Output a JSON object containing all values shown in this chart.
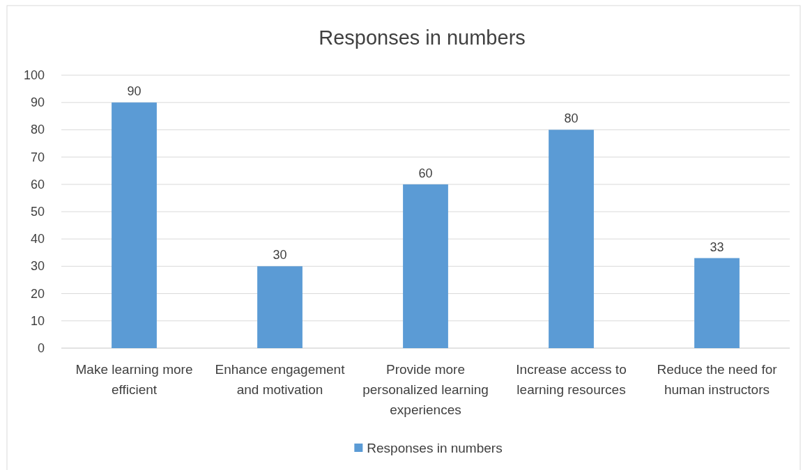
{
  "chart_data": {
    "type": "bar",
    "title": "Responses in numbers",
    "categories": [
      "Make learning more efficient",
      "Enhance engagement and motivation",
      "Provide more personalized learning experiences",
      "Increase access to learning resources",
      "Reduce the need for human instructors"
    ],
    "series": [
      {
        "name": "Responses in numbers",
        "color": "#5b9bd5",
        "values": [
          90,
          30,
          60,
          80,
          33
        ]
      }
    ],
    "ylim": [
      0,
      100
    ],
    "yticks": [
      0,
      10,
      20,
      30,
      40,
      50,
      60,
      70,
      80,
      90,
      100
    ],
    "grid": "y",
    "legend": "bottom",
    "data_labels": true
  }
}
